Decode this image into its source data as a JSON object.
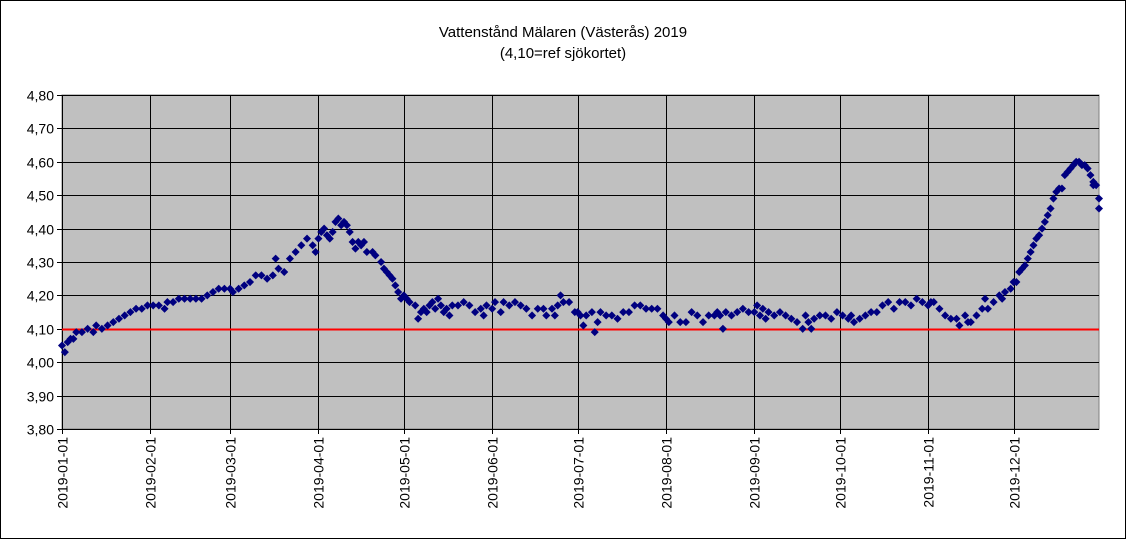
{
  "chart_data": {
    "type": "scatter",
    "title": "Vattenstånd Mälaren (Västerås) 2019",
    "subtitle": "(4,10=ref sjökortet)",
    "xlabel": "",
    "ylabel": "",
    "xlim": [
      "2019-01-01",
      "2019-12-31"
    ],
    "ylim": [
      3.8,
      4.8
    ],
    "x_tick_labels": [
      "2019-01-01",
      "2019-02-01",
      "2019-03-01",
      "2019-04-01",
      "2019-05-01",
      "2019-06-01",
      "2019-07-01",
      "2019-08-01",
      "2019-09-01",
      "2019-10-01",
      "2019-11-01",
      "2019-12-01"
    ],
    "y_tick_labels": [
      "3,80",
      "3,90",
      "4,00",
      "4,10",
      "4,20",
      "4,30",
      "4,40",
      "4,50",
      "4,60",
      "4,70",
      "4,80"
    ],
    "grid": true,
    "legend": "none",
    "reference_line": {
      "y": 4.1,
      "color": "#ff0000"
    },
    "colors": {
      "plot_background": "#c0c0c0",
      "marker": "#000080",
      "grid": "#000000"
    },
    "series": [
      {
        "marker": "diamond",
        "points": [
          [
            "2019-01-01",
            4.05
          ],
          [
            "2019-01-02",
            4.03
          ],
          [
            "2019-01-03",
            4.06
          ],
          [
            "2019-01-04",
            4.07
          ],
          [
            "2019-01-05",
            4.07
          ],
          [
            "2019-01-06",
            4.09
          ],
          [
            "2019-01-08",
            4.09
          ],
          [
            "2019-01-10",
            4.1
          ],
          [
            "2019-01-12",
            4.09
          ],
          [
            "2019-01-13",
            4.11
          ],
          [
            "2019-01-15",
            4.1
          ],
          [
            "2019-01-17",
            4.11
          ],
          [
            "2019-01-19",
            4.12
          ],
          [
            "2019-01-21",
            4.13
          ],
          [
            "2019-01-23",
            4.14
          ],
          [
            "2019-01-25",
            4.15
          ],
          [
            "2019-01-27",
            4.16
          ],
          [
            "2019-01-29",
            4.16
          ],
          [
            "2019-01-31",
            4.17
          ],
          [
            "2019-02-02",
            4.17
          ],
          [
            "2019-02-04",
            4.17
          ],
          [
            "2019-02-06",
            4.16
          ],
          [
            "2019-02-07",
            4.18
          ],
          [
            "2019-02-09",
            4.18
          ],
          [
            "2019-02-11",
            4.19
          ],
          [
            "2019-02-13",
            4.19
          ],
          [
            "2019-02-15",
            4.19
          ],
          [
            "2019-02-17",
            4.19
          ],
          [
            "2019-02-19",
            4.19
          ],
          [
            "2019-02-21",
            4.2
          ],
          [
            "2019-02-23",
            4.21
          ],
          [
            "2019-02-25",
            4.22
          ],
          [
            "2019-02-27",
            4.22
          ],
          [
            "2019-03-01",
            4.22
          ],
          [
            "2019-03-02",
            4.21
          ],
          [
            "2019-03-04",
            4.22
          ],
          [
            "2019-03-06",
            4.23
          ],
          [
            "2019-03-08",
            4.24
          ],
          [
            "2019-03-10",
            4.26
          ],
          [
            "2019-03-12",
            4.26
          ],
          [
            "2019-03-14",
            4.25
          ],
          [
            "2019-03-16",
            4.26
          ],
          [
            "2019-03-17",
            4.31
          ],
          [
            "2019-03-18",
            4.28
          ],
          [
            "2019-03-20",
            4.27
          ],
          [
            "2019-03-22",
            4.31
          ],
          [
            "2019-03-24",
            4.33
          ],
          [
            "2019-03-26",
            4.35
          ],
          [
            "2019-03-28",
            4.37
          ],
          [
            "2019-03-30",
            4.35
          ],
          [
            "2019-03-31",
            4.33
          ],
          [
            "2019-04-01",
            4.37
          ],
          [
            "2019-04-02",
            4.39
          ],
          [
            "2019-04-03",
            4.4
          ],
          [
            "2019-04-04",
            4.38
          ],
          [
            "2019-04-05",
            4.37
          ],
          [
            "2019-04-06",
            4.39
          ],
          [
            "2019-04-07",
            4.42
          ],
          [
            "2019-04-08",
            4.43
          ],
          [
            "2019-04-09",
            4.41
          ],
          [
            "2019-04-10",
            4.42
          ],
          [
            "2019-04-11",
            4.41
          ],
          [
            "2019-04-12",
            4.39
          ],
          [
            "2019-04-13",
            4.36
          ],
          [
            "2019-04-14",
            4.34
          ],
          [
            "2019-04-15",
            4.36
          ],
          [
            "2019-04-16",
            4.35
          ],
          [
            "2019-04-17",
            4.36
          ],
          [
            "2019-04-18",
            4.33
          ],
          [
            "2019-04-20",
            4.33
          ],
          [
            "2019-04-21",
            4.32
          ],
          [
            "2019-04-23",
            4.3
          ],
          [
            "2019-04-24",
            4.28
          ],
          [
            "2019-04-25",
            4.27
          ],
          [
            "2019-04-26",
            4.26
          ],
          [
            "2019-04-27",
            4.25
          ],
          [
            "2019-04-28",
            4.23
          ],
          [
            "2019-04-29",
            4.21
          ],
          [
            "2019-04-30",
            4.19
          ],
          [
            "2019-05-01",
            4.2
          ],
          [
            "2019-05-02",
            4.19
          ],
          [
            "2019-05-03",
            4.18
          ],
          [
            "2019-05-05",
            4.17
          ],
          [
            "2019-05-06",
            4.13
          ],
          [
            "2019-05-07",
            4.15
          ],
          [
            "2019-05-08",
            4.16
          ],
          [
            "2019-05-09",
            4.15
          ],
          [
            "2019-05-10",
            4.17
          ],
          [
            "2019-05-11",
            4.18
          ],
          [
            "2019-05-12",
            4.16
          ],
          [
            "2019-05-13",
            4.19
          ],
          [
            "2019-05-14",
            4.17
          ],
          [
            "2019-05-15",
            4.15
          ],
          [
            "2019-05-16",
            4.16
          ],
          [
            "2019-05-17",
            4.14
          ],
          [
            "2019-05-18",
            4.17
          ],
          [
            "2019-05-20",
            4.17
          ],
          [
            "2019-05-22",
            4.18
          ],
          [
            "2019-05-24",
            4.17
          ],
          [
            "2019-05-26",
            4.15
          ],
          [
            "2019-05-28",
            4.16
          ],
          [
            "2019-05-29",
            4.14
          ],
          [
            "2019-05-30",
            4.17
          ],
          [
            "2019-06-01",
            4.16
          ],
          [
            "2019-06-02",
            4.18
          ],
          [
            "2019-06-04",
            4.15
          ],
          [
            "2019-06-05",
            4.18
          ],
          [
            "2019-06-07",
            4.17
          ],
          [
            "2019-06-09",
            4.18
          ],
          [
            "2019-06-11",
            4.17
          ],
          [
            "2019-06-13",
            4.16
          ],
          [
            "2019-06-15",
            4.14
          ],
          [
            "2019-06-17",
            4.16
          ],
          [
            "2019-06-19",
            4.16
          ],
          [
            "2019-06-20",
            4.14
          ],
          [
            "2019-06-22",
            4.16
          ],
          [
            "2019-06-23",
            4.14
          ],
          [
            "2019-06-24",
            4.17
          ],
          [
            "2019-06-25",
            4.2
          ],
          [
            "2019-06-26",
            4.18
          ],
          [
            "2019-06-28",
            4.18
          ],
          [
            "2019-06-30",
            4.15
          ],
          [
            "2019-07-01",
            4.15
          ],
          [
            "2019-07-02",
            4.14
          ],
          [
            "2019-07-03",
            4.11
          ],
          [
            "2019-07-04",
            4.14
          ],
          [
            "2019-07-06",
            4.15
          ],
          [
            "2019-07-07",
            4.09
          ],
          [
            "2019-07-08",
            4.12
          ],
          [
            "2019-07-09",
            4.15
          ],
          [
            "2019-07-11",
            4.14
          ],
          [
            "2019-07-13",
            4.14
          ],
          [
            "2019-07-15",
            4.13
          ],
          [
            "2019-07-17",
            4.15
          ],
          [
            "2019-07-19",
            4.15
          ],
          [
            "2019-07-21",
            4.17
          ],
          [
            "2019-07-23",
            4.17
          ],
          [
            "2019-07-25",
            4.16
          ],
          [
            "2019-07-27",
            4.16
          ],
          [
            "2019-07-29",
            4.16
          ],
          [
            "2019-07-31",
            4.14
          ],
          [
            "2019-08-01",
            4.13
          ],
          [
            "2019-08-02",
            4.12
          ],
          [
            "2019-08-04",
            4.14
          ],
          [
            "2019-08-06",
            4.12
          ],
          [
            "2019-08-08",
            4.12
          ],
          [
            "2019-08-10",
            4.15
          ],
          [
            "2019-08-12",
            4.14
          ],
          [
            "2019-08-14",
            4.12
          ],
          [
            "2019-08-16",
            4.14
          ],
          [
            "2019-08-18",
            4.14
          ],
          [
            "2019-08-19",
            4.15
          ],
          [
            "2019-08-20",
            4.14
          ],
          [
            "2019-08-21",
            4.1
          ],
          [
            "2019-08-22",
            4.15
          ],
          [
            "2019-08-24",
            4.14
          ],
          [
            "2019-08-26",
            4.15
          ],
          [
            "2019-08-28",
            4.16
          ],
          [
            "2019-08-30",
            4.15
          ],
          [
            "2019-09-01",
            4.15
          ],
          [
            "2019-09-02",
            4.17
          ],
          [
            "2019-09-03",
            4.14
          ],
          [
            "2019-09-04",
            4.16
          ],
          [
            "2019-09-05",
            4.13
          ],
          [
            "2019-09-06",
            4.15
          ],
          [
            "2019-09-08",
            4.14
          ],
          [
            "2019-09-10",
            4.15
          ],
          [
            "2019-09-12",
            4.14
          ],
          [
            "2019-09-14",
            4.13
          ],
          [
            "2019-09-16",
            4.12
          ],
          [
            "2019-09-18",
            4.1
          ],
          [
            "2019-09-19",
            4.14
          ],
          [
            "2019-09-20",
            4.12
          ],
          [
            "2019-09-21",
            4.1
          ],
          [
            "2019-09-22",
            4.13
          ],
          [
            "2019-09-24",
            4.14
          ],
          [
            "2019-09-26",
            4.14
          ],
          [
            "2019-09-28",
            4.13
          ],
          [
            "2019-09-30",
            4.15
          ],
          [
            "2019-10-02",
            4.14
          ],
          [
            "2019-10-04",
            4.13
          ],
          [
            "2019-10-05",
            4.14
          ],
          [
            "2019-10-06",
            4.12
          ],
          [
            "2019-10-08",
            4.13
          ],
          [
            "2019-10-10",
            4.14
          ],
          [
            "2019-10-12",
            4.15
          ],
          [
            "2019-10-14",
            4.15
          ],
          [
            "2019-10-16",
            4.17
          ],
          [
            "2019-10-18",
            4.18
          ],
          [
            "2019-10-20",
            4.16
          ],
          [
            "2019-10-22",
            4.18
          ],
          [
            "2019-10-24",
            4.18
          ],
          [
            "2019-10-26",
            4.17
          ],
          [
            "2019-10-28",
            4.19
          ],
          [
            "2019-10-30",
            4.18
          ],
          [
            "2019-11-01",
            4.17
          ],
          [
            "2019-11-02",
            4.18
          ],
          [
            "2019-11-03",
            4.18
          ],
          [
            "2019-11-05",
            4.16
          ],
          [
            "2019-11-07",
            4.14
          ],
          [
            "2019-11-09",
            4.13
          ],
          [
            "2019-11-11",
            4.13
          ],
          [
            "2019-11-12",
            4.11
          ],
          [
            "2019-11-14",
            4.14
          ],
          [
            "2019-11-15",
            4.12
          ],
          [
            "2019-11-16",
            4.12
          ],
          [
            "2019-11-18",
            4.14
          ],
          [
            "2019-11-20",
            4.16
          ],
          [
            "2019-11-21",
            4.19
          ],
          [
            "2019-11-22",
            4.16
          ],
          [
            "2019-11-24",
            4.18
          ],
          [
            "2019-11-26",
            4.2
          ],
          [
            "2019-11-27",
            4.19
          ],
          [
            "2019-11-28",
            4.21
          ],
          [
            "2019-11-30",
            4.22
          ],
          [
            "2019-12-01",
            4.24
          ],
          [
            "2019-12-02",
            4.24
          ],
          [
            "2019-12-03",
            4.27
          ],
          [
            "2019-12-04",
            4.28
          ],
          [
            "2019-12-05",
            4.29
          ],
          [
            "2019-12-06",
            4.31
          ],
          [
            "2019-12-07",
            4.33
          ],
          [
            "2019-12-08",
            4.35
          ],
          [
            "2019-12-09",
            4.37
          ],
          [
            "2019-12-10",
            4.38
          ],
          [
            "2019-12-11",
            4.4
          ],
          [
            "2019-12-12",
            4.42
          ],
          [
            "2019-12-13",
            4.44
          ],
          [
            "2019-12-14",
            4.46
          ],
          [
            "2019-12-15",
            4.49
          ],
          [
            "2019-12-16",
            4.51
          ],
          [
            "2019-12-17",
            4.52
          ],
          [
            "2019-12-18",
            4.52
          ],
          [
            "2019-12-19",
            4.56
          ],
          [
            "2019-12-20",
            4.57
          ],
          [
            "2019-12-21",
            4.58
          ],
          [
            "2019-12-22",
            4.59
          ],
          [
            "2019-12-23",
            4.6
          ],
          [
            "2019-12-24",
            4.6
          ],
          [
            "2019-12-25",
            4.59
          ],
          [
            "2019-12-26",
            4.59
          ],
          [
            "2019-12-27",
            4.58
          ],
          [
            "2019-12-28",
            4.56
          ],
          [
            "2019-12-29",
            4.53
          ],
          [
            "2019-12-29",
            4.54
          ],
          [
            "2019-12-30",
            4.53
          ],
          [
            "2019-12-31",
            4.49
          ],
          [
            "2019-12-31",
            4.46
          ]
        ]
      }
    ]
  }
}
